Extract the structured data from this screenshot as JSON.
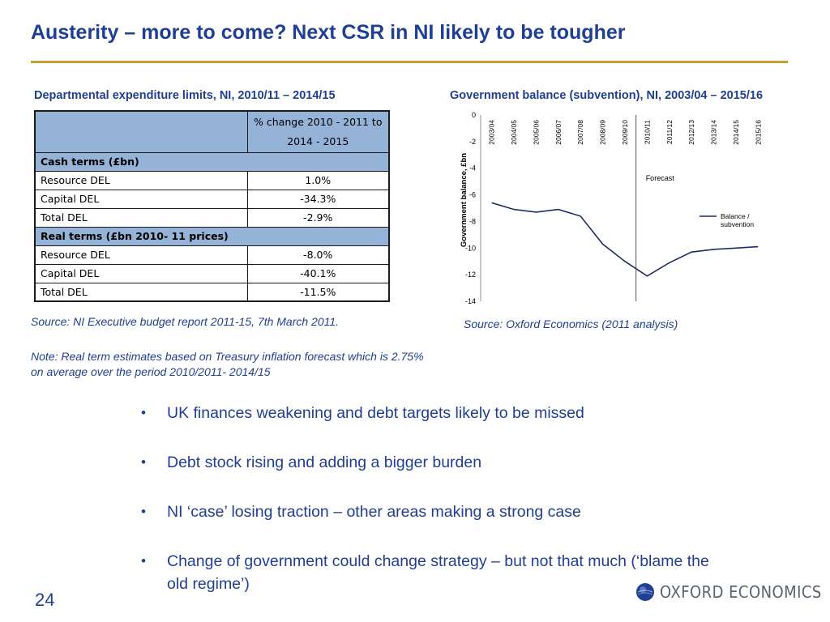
{
  "slide": {
    "title": "Austerity – more to come? Next CSR in NI likely to be  tougher",
    "page_number": "24"
  },
  "left": {
    "title": "Departmental expenditure limits, NI, 2010/11 – 2014/15",
    "table": {
      "header_line1": "% change 2010 - 2011 to",
      "header_line2": "2014 - 2015",
      "section1": "Cash terms (£bn)",
      "section2": "Real terms (£bn 2010- 11 prices)",
      "rows1": [
        {
          "label": "Resource DEL",
          "value": "1.0%"
        },
        {
          "label": "Capital DEL",
          "value": "-34.3%"
        },
        {
          "label": "Total DEL",
          "value": "-2.9%"
        }
      ],
      "rows2": [
        {
          "label": "Resource DEL",
          "value": "-8.0%"
        },
        {
          "label": "Capital DEL",
          "value": "-40.1%"
        },
        {
          "label": "Total DEL",
          "value": "-11.5%"
        }
      ]
    },
    "source": "Source: NI Executive budget report 2011-15, 7th March 2011.",
    "note": "Note: Real term estimates based on Treasury inflation forecast which is 2.75% on average over the period 2010/2011- 2014/15"
  },
  "right": {
    "title": "Government balance (subvention), NI, 2003/04 – 2015/16",
    "source": "Source: Oxford Economics (2011 analysis)"
  },
  "chart_data": {
    "type": "line",
    "title": "Government balance (subvention), NI, 2003/04 – 2015/16",
    "x": [
      "2003/04",
      "2004/05",
      "2005/06",
      "2006/07",
      "2007/08",
      "2008/09",
      "2009/10",
      "2010/11",
      "2011/12",
      "2012/13",
      "2013/14",
      "2014/15",
      "2015/16"
    ],
    "series": [
      {
        "name": "Balance / subvention",
        "values": [
          -6.6,
          -7.1,
          -7.3,
          -7.1,
          -7.6,
          -9.7,
          -11.0,
          -12.1,
          -11.1,
          -10.3,
          -10.1,
          -10.0,
          -9.9
        ],
        "color": "#1f2a6b"
      }
    ],
    "ylabel": "Government balance, £bn",
    "ylim": [
      -14,
      0
    ],
    "yticks": [
      0,
      -2,
      -4,
      -6,
      -8,
      -10,
      -12,
      -14
    ],
    "annotation": "Forecast",
    "forecast_divider_after": "2009/10",
    "legend_position": "right",
    "grid": false
  },
  "bullets": [
    "UK finances weakening and debt targets likely to be missed",
    "Debt stock rising and adding a bigger burden",
    "NI ‘case’ losing traction – other areas making a strong case",
    "Change of government could change strategy – but not that much (‘blame the old regime’)"
  ],
  "logo": {
    "text": "OXFORD ECONOMICS",
    "color": "#5a6270",
    "accent": "#1f3f95"
  }
}
